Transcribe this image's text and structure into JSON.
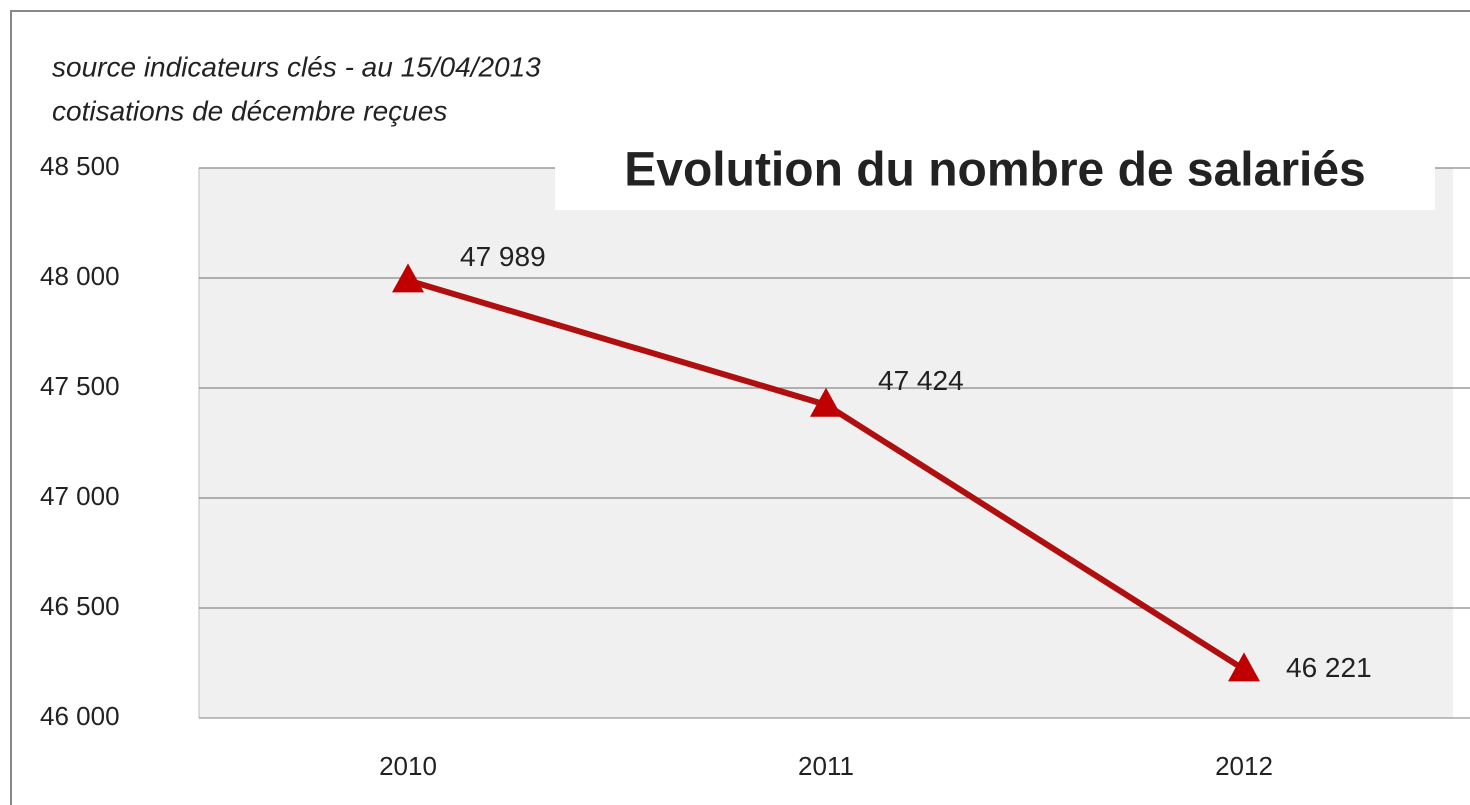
{
  "chart_data": {
    "type": "line",
    "title": "Evolution du nombre de salariés",
    "subtitle": [
      "source indicateurs clés  - au 15/04/2013",
      "cotisations de décembre reçues"
    ],
    "categories": [
      "2010",
      "2011",
      "2012"
    ],
    "series": [
      {
        "name": "salariés",
        "color": "#b00f0f",
        "values": [
          47989,
          47424,
          46221
        ],
        "value_labels": [
          "47 989",
          "47 424",
          "46 221"
        ]
      }
    ],
    "ylim": [
      46000,
      48500
    ],
    "yticks": [
      {
        "value": 46000,
        "label": "46 000"
      },
      {
        "value": 46500,
        "label": "46 500"
      },
      {
        "value": 47000,
        "label": "47 000"
      },
      {
        "value": 47500,
        "label": "47 500"
      },
      {
        "value": 48000,
        "label": "48 000"
      },
      {
        "value": 48500,
        "label": "48 500"
      }
    ],
    "grid": true
  }
}
